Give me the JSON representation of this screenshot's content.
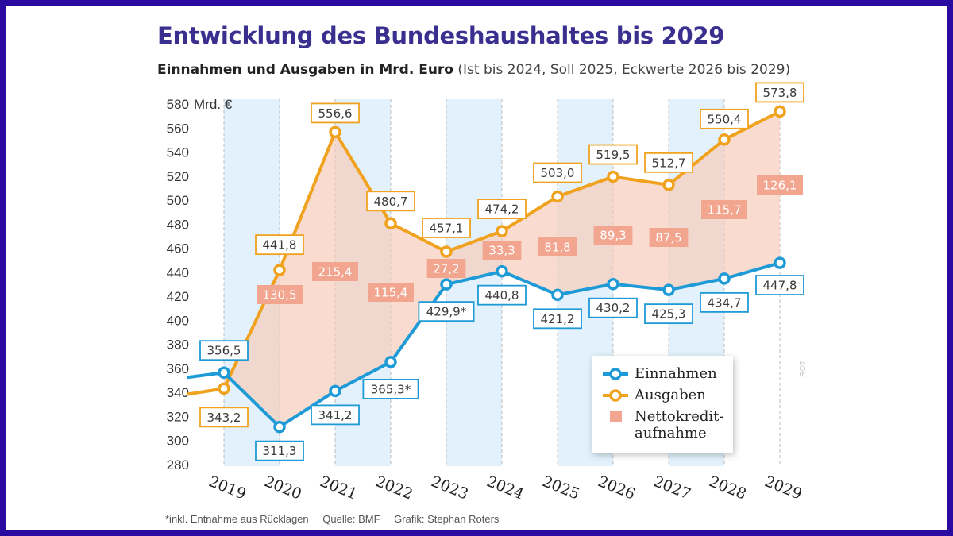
{
  "title": "Entwicklung des Bundeshaushaltes bis 2029",
  "subtitle_bold": "Einnahmen und Ausgaben in Mrd. Euro",
  "subtitle_normal": "(Ist bis 2024, Soll 2025, Eckwerte 2026 bis 2029)",
  "footer": {
    "note": "*inkl. Entnahme aus Rücklagen",
    "source": "Quelle: BMF",
    "graphic": "Grafik: Stephan Roters"
  },
  "side_credit": "ROT",
  "colors": {
    "einnahmen": "#1e9ad6",
    "ausgaben": "#f0a21e",
    "netto_fill": "#f6cdbb",
    "netto_label": "#f2a58f",
    "band": "#e2f1fb",
    "title": "#3a2f8f"
  },
  "chart_data": {
    "type": "line",
    "x": [
      "2019",
      "2020",
      "2021",
      "2022",
      "2023",
      "2024",
      "2025",
      "2026",
      "2027",
      "2028",
      "2029"
    ],
    "ylabel": "Mrd. €",
    "ylim": [
      280,
      580
    ],
    "yticks": [
      280,
      300,
      320,
      340,
      360,
      380,
      400,
      420,
      440,
      460,
      480,
      500,
      520,
      540,
      560,
      580
    ],
    "grid": "vertical dashed",
    "legend_position": "bottom-right",
    "series": [
      {
        "name": "Einnahmen",
        "values": [
          356.5,
          311.3,
          341.2,
          365.3,
          429.9,
          440.8,
          421.2,
          430.2,
          425.3,
          434.7,
          447.8
        ],
        "labels": [
          "356,5",
          "311,3",
          "341,2",
          "365,3*",
          "429,9*",
          "440,8",
          "421,2",
          "430,2",
          "425,3",
          "434,7",
          "447,8"
        ]
      },
      {
        "name": "Ausgaben",
        "values": [
          343.2,
          441.8,
          556.6,
          480.7,
          457.1,
          474.2,
          503.0,
          519.5,
          512.7,
          550.4,
          573.8
        ],
        "labels": [
          "343,2",
          "441,8",
          "556,6",
          "480,7",
          "457,1",
          "474,2",
          "503,0",
          "519,5",
          "512,7",
          "550,4",
          "573,8"
        ]
      },
      {
        "name": "Nettokredit-aufnahme",
        "values": [
          null,
          130.5,
          215.4,
          115.4,
          27.2,
          33.3,
          81.8,
          89.3,
          87.5,
          115.7,
          126.1
        ],
        "labels": [
          "",
          "130,5",
          "215,4",
          "115,4",
          "27,2",
          "33,3",
          "81,8",
          "89,3",
          "87,5",
          "115,7",
          "126,1"
        ]
      }
    ],
    "legend": {
      "einnahmen": "Einnahmen",
      "ausgaben": "Ausgaben",
      "netto_line1": "Nettokredit-",
      "netto_line2": "aufnahme"
    }
  }
}
